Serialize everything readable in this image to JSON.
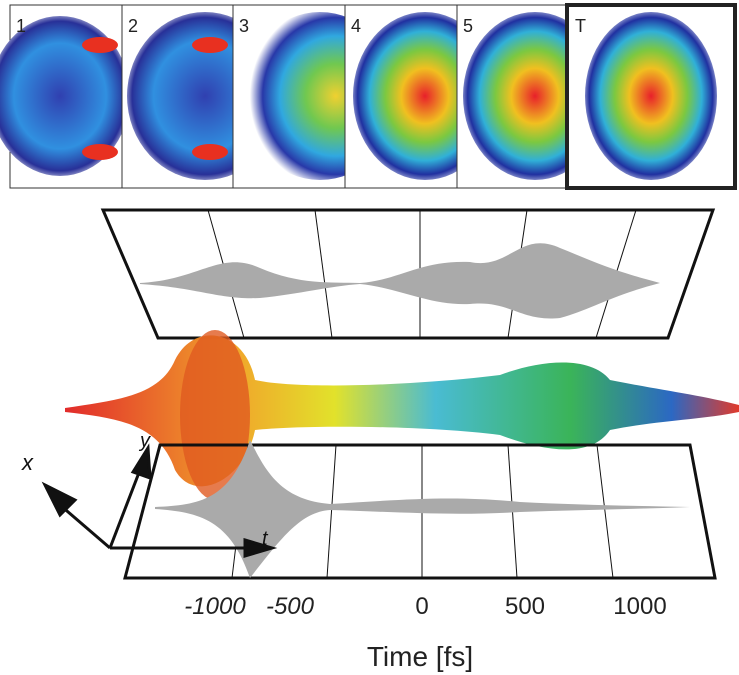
{
  "panels": [
    {
      "label": "1"
    },
    {
      "label": "2"
    },
    {
      "label": "3"
    },
    {
      "label": "4"
    },
    {
      "label": "5"
    },
    {
      "label": "T"
    }
  ],
  "coordinate_axes": {
    "x": "x",
    "y": "y",
    "t": "t"
  },
  "time_axis": {
    "title": "Time [fs]",
    "ticks": [
      -1000,
      -500,
      0,
      500,
      1000
    ]
  }
}
